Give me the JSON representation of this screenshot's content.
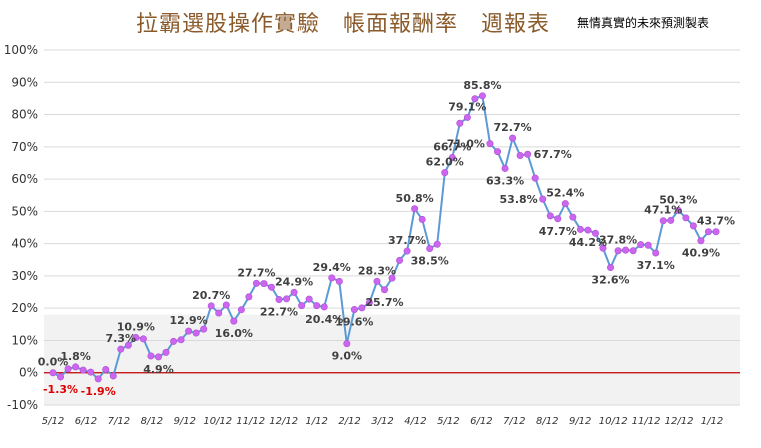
{
  "title": "拉霸選股操作實驗　帳面報酬率　週報表",
  "subtitle": "無情真實的未來預測製表",
  "chart_data": {
    "type": "line",
    "ylim": [
      -10,
      100
    ],
    "yticks": [
      -10,
      0,
      10,
      20,
      30,
      40,
      50,
      60,
      70,
      80,
      90,
      100
    ],
    "ytick_labels": [
      "-10%",
      "0%",
      "10%",
      "20%",
      "30%",
      "40%",
      "50%",
      "60%",
      "70%",
      "80%",
      "90%",
      "100%"
    ],
    "xtick_labels": [
      "5/12",
      "6/12",
      "7/12",
      "8/12",
      "9/12",
      "10/12",
      "11/12",
      "12/12",
      "1/12",
      "2/12",
      "3/12",
      "4/12",
      "5/12",
      "6/12",
      "7/12",
      "8/12",
      "9/12",
      "10/12",
      "11/12",
      "12/12",
      "1/12"
    ],
    "grid": true,
    "shaded_band": [
      -10,
      18
    ],
    "zero_line_color": "#c00000",
    "line_color": "#5b9bd5",
    "marker_color": "#cc66ee",
    "series": [
      {
        "values": [
          0.0,
          -1.3,
          1.2,
          1.8,
          0.8,
          0.2,
          -1.9,
          1.0,
          -1.0,
          7.3,
          8.5,
          10.9,
          10.5,
          5.2,
          4.9,
          6.3,
          9.7,
          10.2,
          12.9,
          12.3,
          13.5,
          20.7,
          18.5,
          21.0,
          16.0,
          19.5,
          23.5,
          27.7,
          27.6,
          26.5,
          22.7,
          22.9,
          24.9,
          20.8,
          22.8,
          20.8,
          20.4,
          29.4,
          28.3,
          9.0,
          19.6,
          20.1,
          21.7,
          28.3,
          25.7,
          29.3,
          34.8,
          37.7,
          50.8,
          47.5,
          38.5,
          39.8,
          62.0,
          66.7,
          77.3,
          79.1,
          84.9,
          85.8,
          71.0,
          68.5,
          63.3,
          72.7,
          67.3,
          67.7,
          60.3,
          53.8,
          48.6,
          47.7,
          52.4,
          48.2,
          44.4,
          44.2,
          43.2,
          38.6,
          32.6,
          37.8,
          38.0,
          37.8,
          39.7,
          39.5,
          37.1,
          47.1,
          47.2,
          50.3,
          48.0,
          45.5,
          40.9,
          43.7,
          43.7
        ]
      }
    ],
    "data_labels": [
      {
        "i": 0,
        "text": "0.0%",
        "pos": "above",
        "neg": false
      },
      {
        "i": 1,
        "text": "-1.3%",
        "pos": "below",
        "neg": true
      },
      {
        "i": 3,
        "text": "1.8%",
        "pos": "above",
        "neg": false
      },
      {
        "i": 6,
        "text": "-1.9%",
        "pos": "below",
        "neg": true
      },
      {
        "i": 9,
        "text": "7.3%",
        "pos": "above",
        "neg": false
      },
      {
        "i": 11,
        "text": "10.9%",
        "pos": "above",
        "neg": false
      },
      {
        "i": 14,
        "text": "4.9%",
        "pos": "below",
        "neg": false
      },
      {
        "i": 18,
        "text": "12.9%",
        "pos": "above",
        "neg": false
      },
      {
        "i": 21,
        "text": "20.7%",
        "pos": "above",
        "neg": false
      },
      {
        "i": 24,
        "text": "16.0%",
        "pos": "below",
        "neg": false
      },
      {
        "i": 27,
        "text": "27.7%",
        "pos": "above",
        "neg": false
      },
      {
        "i": 30,
        "text": "22.7%",
        "pos": "below",
        "neg": false
      },
      {
        "i": 32,
        "text": "24.9%",
        "pos": "above",
        "neg": false
      },
      {
        "i": 36,
        "text": "20.4%",
        "pos": "below",
        "neg": false
      },
      {
        "i": 37,
        "text": "29.4%",
        "pos": "above",
        "neg": false
      },
      {
        "i": 39,
        "text": "9.0%",
        "pos": "below",
        "neg": false
      },
      {
        "i": 40,
        "text": "19.6%",
        "pos": "below",
        "neg": false
      },
      {
        "i": 43,
        "text": "28.3%",
        "pos": "above",
        "neg": false
      },
      {
        "i": 44,
        "text": "25.7%",
        "pos": "below",
        "neg": false
      },
      {
        "i": 47,
        "text": "37.7%",
        "pos": "above",
        "neg": false
      },
      {
        "i": 48,
        "text": "50.8%",
        "pos": "above",
        "neg": false
      },
      {
        "i": 50,
        "text": "38.5%",
        "pos": "below",
        "neg": false
      },
      {
        "i": 52,
        "text": "62.0%",
        "pos": "above",
        "neg": false
      },
      {
        "i": 53,
        "text": "66.7%",
        "pos": "above",
        "neg": false
      },
      {
        "i": 55,
        "text": "79.1%",
        "pos": "above",
        "neg": false
      },
      {
        "i": 57,
        "text": "85.8%",
        "pos": "above",
        "neg": false
      },
      {
        "i": 58,
        "text": "71.0%",
        "pos": "left",
        "neg": false
      },
      {
        "i": 60,
        "text": "63.3%",
        "pos": "below",
        "neg": false
      },
      {
        "i": 61,
        "text": "72.7%",
        "pos": "above",
        "neg": false
      },
      {
        "i": 63,
        "text": "67.7%",
        "pos": "right",
        "neg": false
      },
      {
        "i": 65,
        "text": "53.8%",
        "pos": "left",
        "neg": false
      },
      {
        "i": 67,
        "text": "47.7%",
        "pos": "below",
        "neg": false
      },
      {
        "i": 68,
        "text": "52.4%",
        "pos": "above",
        "neg": false
      },
      {
        "i": 71,
        "text": "44.2%",
        "pos": "below",
        "neg": false
      },
      {
        "i": 74,
        "text": "32.6%",
        "pos": "below",
        "neg": false
      },
      {
        "i": 75,
        "text": "37.8%",
        "pos": "above",
        "neg": false
      },
      {
        "i": 80,
        "text": "37.1%",
        "pos": "below",
        "neg": false
      },
      {
        "i": 81,
        "text": "47.1%",
        "pos": "above",
        "neg": false
      },
      {
        "i": 83,
        "text": "50.3%",
        "pos": "above",
        "neg": false
      },
      {
        "i": 86,
        "text": "40.9%",
        "pos": "below",
        "neg": false
      },
      {
        "i": 88,
        "text": "43.7%",
        "pos": "above",
        "neg": false
      }
    ]
  }
}
